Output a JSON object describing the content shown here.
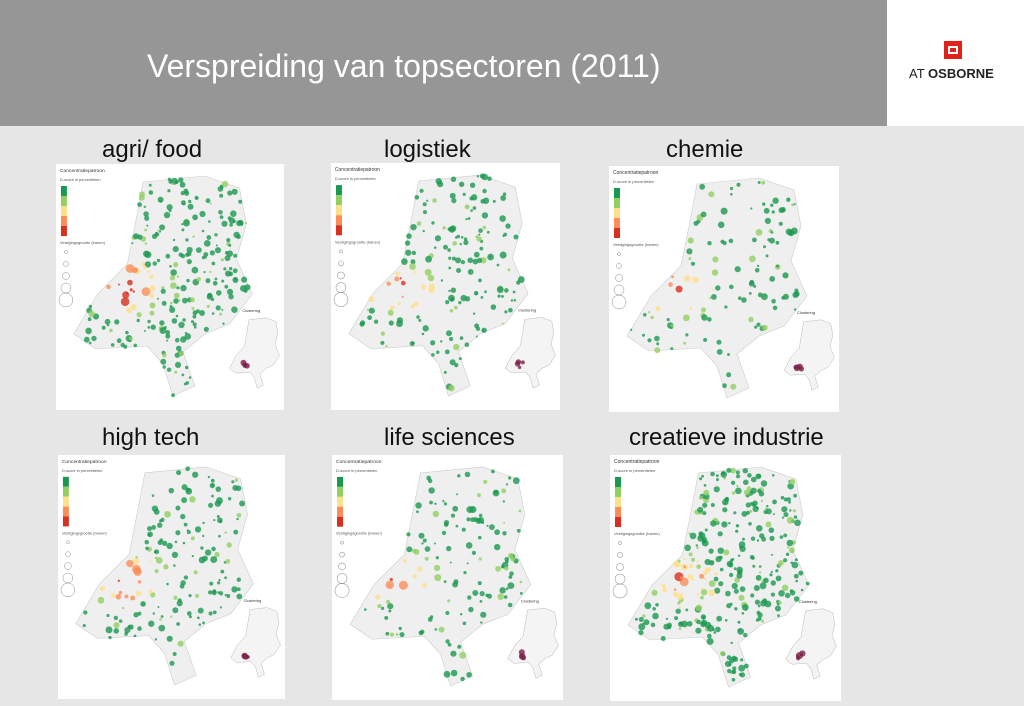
{
  "slide": {
    "title": "Verspreiding van topsectoren (2011)",
    "logo": {
      "prefix": "AT",
      "brand": "OSBORNE",
      "accent": "#e2211c"
    }
  },
  "panels": [
    {
      "caption": "agri/ food",
      "map": {
        "header": "Concentratiepatroon",
        "legend": "D-score in percentielen",
        "size_title": "Vestigingsgrootte (banen)",
        "clustering": "Clustering"
      }
    },
    {
      "caption": "logistiek",
      "map": {
        "header": "Concentratiepatroon",
        "legend": "D-score in percentielen",
        "size_title": "Vestigingsgrootte (banen)",
        "clustering": "Clustering"
      }
    },
    {
      "caption": "chemie",
      "map": {
        "header": "Concentratiepatroon",
        "legend": "D-score in percentielen",
        "size_title": "Vestigingsgrootte (banen)",
        "clustering": "Clustering"
      }
    },
    {
      "caption": "high tech",
      "map": {
        "header": "Concentratiepatroon",
        "legend": "D-score in percentielen",
        "size_title": "Vestigingsgrootte (banen)",
        "clustering": "Clustering"
      }
    },
    {
      "caption": "life sciences",
      "map": {
        "header": "Concentratiepatroon",
        "legend": "D-score in percentielen",
        "size_title": "Vestigingsgrootte (banen)",
        "clustering": "Clustering"
      }
    },
    {
      "caption": "creatieve industrie",
      "map": {
        "header": "Concentratiepatroon",
        "legend": "D-score in percentielen",
        "size_title": "Vestigingsgrootte (banen)",
        "clustering": "Clustering"
      }
    }
  ],
  "colors": {
    "header_bg": "#969696",
    "page_bg": "#e6e6e6",
    "hot": "#d7301f",
    "warm": "#fc8d59",
    "mid": "#fee08b",
    "cool": "#91cf60",
    "cold": "#1a9850"
  }
}
